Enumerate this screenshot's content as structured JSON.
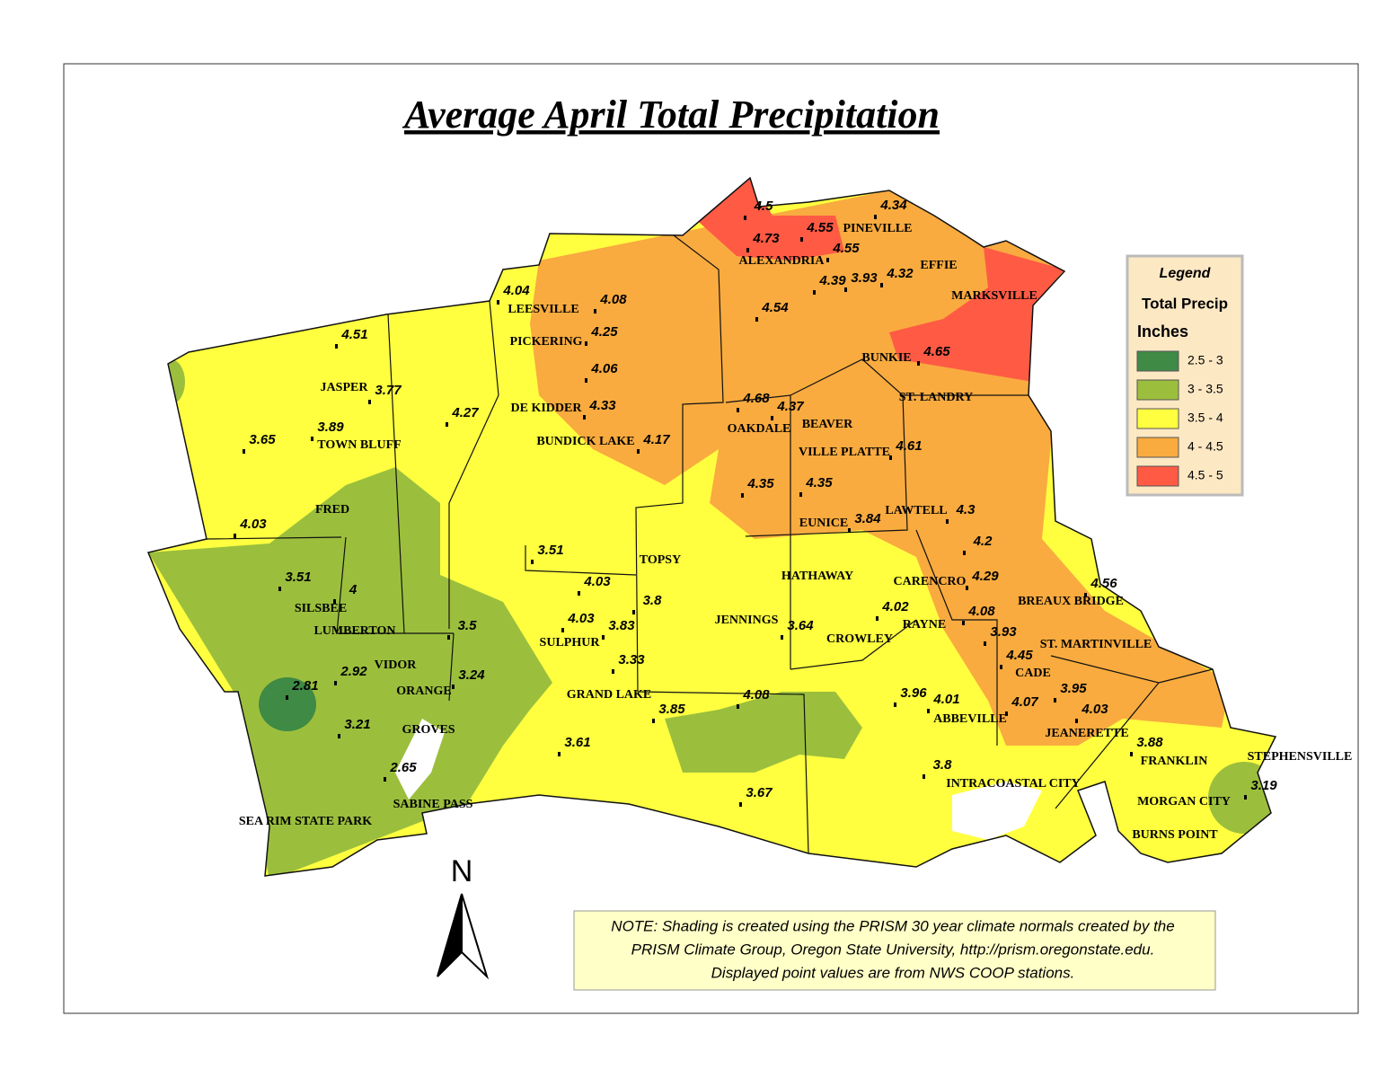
{
  "title": "Average April Total Precipitation",
  "legend": {
    "title": "Legend",
    "heading": "Total Precip",
    "units": "Inches",
    "items": [
      {
        "label": "2.5 - 3",
        "color": "#3f8a45"
      },
      {
        "label": "3 - 3.5",
        "color": "#9bbf3d"
      },
      {
        "label": "3.5 - 4",
        "color": "#ffff40"
      },
      {
        "label": "4 - 4.5",
        "color": "#f9ab3f"
      },
      {
        "label": "4.5 - 5",
        "color": "#ff5a44"
      }
    ]
  },
  "places": [
    "LEESVILLE",
    "PICKERING",
    "DE KIDDER",
    "BUNDICK LAKE",
    "JASPER",
    "TOWN BLUFF",
    "FRED",
    "SILSBEE",
    "LUMBERTON",
    "VIDOR",
    "ORANGE",
    "GROVES",
    "SABINE PASS",
    "SEA RIM STATE PARK",
    "PINEVILLE",
    "ALEXANDRIA",
    "EFFIE",
    "MARKSVILLE",
    "BUNKIE",
    "ST. LANDRY",
    "BEAVER",
    "OAKDALE",
    "VILLE PLATTE",
    "EUNICE",
    "LAWTELL",
    "TOPSY",
    "HATHAWAY",
    "CARENCRO",
    "BREAUX BRIDGE",
    "JENNINGS",
    "RAYNE",
    "CROWLEY",
    "SULPHUR",
    "ST. MARTINVILLE",
    "CADE",
    "GRAND LAKE",
    "ABBEVILLE",
    "JEANERETTE",
    "FRANKLIN",
    "STEPHENSVILLE",
    "INTRACOASTAL CITY",
    "MORGAN CITY",
    "BURNS POINT"
  ],
  "stations": [
    "4.5",
    "4.34",
    "4.55",
    "4.73",
    "4.55",
    "4.32",
    "3.93",
    "4.39",
    "4.04",
    "4.08",
    "4.54",
    "4.25",
    "4.51",
    "4.65",
    "4.06",
    "3.77",
    "4.68",
    "4.37",
    "4.33",
    "4.27",
    "3.89",
    "3.65",
    "4.17",
    "4.61",
    "4.35",
    "4.35",
    "4.3",
    "3.84",
    "4.03",
    "4.2",
    "3.51",
    "3.51",
    "4.29",
    "4.56",
    "4.03",
    "4",
    "3.8",
    "4.02",
    "4.08",
    "4.03",
    "3.83",
    "3.64",
    "3.5",
    "3.93",
    "4.45",
    "3.33",
    "2.92",
    "3.24",
    "2.81",
    "3.95",
    "3.96",
    "4.08",
    "4.01",
    "4.07",
    "4.03",
    "3.85",
    "3.21",
    "3.61",
    "3.88",
    "2.65",
    "3.8",
    "3.19",
    "3.67"
  ],
  "north": "N",
  "note": [
    "NOTE: Shading is created using the PRISM 30 year climate normals created by the",
    "PRISM Climate Group, Oregon State University, http://prism.oregonstate.edu.",
    "Displayed point values are from NWS COOP stations."
  ]
}
